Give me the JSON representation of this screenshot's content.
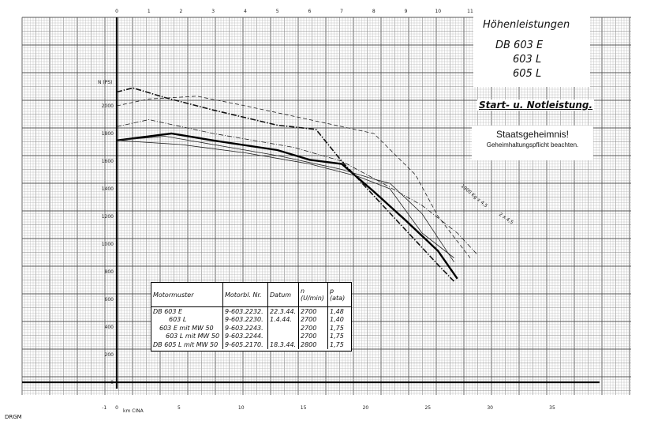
{
  "title": {
    "line1": "Höhenleistungen",
    "line2": "DB 603 E",
    "line3": "603 L",
    "line4": "605 L"
  },
  "start_label": "Start- u. Notleistung.",
  "secret": {
    "headline": "Staatsgeheimnis!",
    "note": "Geheimhaltungspflicht beachten."
  },
  "footer": "DRGM",
  "legend": {
    "headers": [
      "Motormuster",
      "Motorbl. Nr.",
      "Datum",
      "n (U/min)",
      "p (ata)"
    ],
    "rows": [
      [
        "DB 603 E",
        "9-603.2232.",
        "22.3.44.",
        "2700",
        "1,48"
      ],
      [
        "603 L",
        "9-603.2230.",
        "1.4.44.",
        "2700",
        "1,40"
      ],
      [
        "603 E mit MW 50",
        "9-603.2243.",
        "",
        "2700",
        "1,75"
      ],
      [
        "603 L mit MW 50",
        "9-603.2244.",
        "",
        "2700",
        "1,75"
      ],
      [
        "DB 605 L mit MW 50",
        "9-605.2170.",
        "18.3.44.",
        "2800",
        "1,75"
      ]
    ]
  },
  "chart_data": {
    "type": "line",
    "ylabel": "N (PS)",
    "y_ticks": [
      "2000",
      "1800",
      "1600",
      "1400",
      "1200",
      "1000",
      "800",
      "600",
      "400",
      "200",
      "0"
    ],
    "ylim": [
      0,
      2200
    ],
    "x_top_ticks": [
      "0",
      "1",
      "2",
      "3",
      "4",
      "5",
      "6",
      "7",
      "8",
      "9",
      "10",
      "11"
    ],
    "x_bottom_label": "km CINA",
    "x_bottom_ticks": [
      "-1",
      "0",
      "5",
      "10",
      "15",
      "20",
      "25",
      "30",
      "35"
    ],
    "xlim": [
      -1,
      11.5
    ],
    "series_annotations": [
      "1900 Kg x 4,5",
      "2 x 4,5"
    ],
    "series": [
      {
        "style": "dash-dot",
        "x": [
          0.0,
          0.5,
          1.5,
          3.0,
          5.0,
          6.2,
          7.0,
          8.0,
          9.0,
          10.0,
          10.5
        ],
        "y": [
          2100,
          2130,
          2060,
          1970,
          1860,
          1830,
          1600,
          1350,
          1100,
          850,
          730
        ]
      },
      {
        "style": "thin-dash",
        "x": [
          0.0,
          1.0,
          2.5,
          4.0,
          6.0,
          8.0,
          9.3,
          10.0,
          11.0
        ],
        "y": [
          2000,
          2050,
          2070,
          2000,
          1900,
          1800,
          1500,
          1200,
          900
        ]
      },
      {
        "style": "dash-dot-light",
        "x": [
          0.0,
          1.0,
          3.0,
          5.5,
          7.0,
          8.2,
          9.5,
          10.6,
          11.2
        ],
        "y": [
          1850,
          1900,
          1800,
          1700,
          1600,
          1450,
          1280,
          1080,
          930
        ]
      },
      {
        "style": "solid-heavy",
        "x": [
          0.0,
          1.7,
          3.0,
          5.0,
          6.0,
          7.0,
          8.0,
          9.0,
          10.0,
          10.6
        ],
        "y": [
          1750,
          1800,
          1750,
          1680,
          1610,
          1580,
          1380,
          1170,
          950,
          750
        ]
      },
      {
        "style": "solid-thin",
        "x": [
          0.0,
          1.5,
          3.0,
          5.0,
          7.0,
          8.0,
          8.5,
          9.5,
          10.5
        ],
        "y": [
          1750,
          1780,
          1720,
          1640,
          1540,
          1470,
          1440,
          1220,
          870
        ]
      },
      {
        "style": "solid-thin",
        "x": [
          0.0,
          2.0,
          4.0,
          6.0,
          7.5,
          8.5,
          9.5,
          10.5
        ],
        "y": [
          1750,
          1720,
          1660,
          1580,
          1490,
          1400,
          1080,
          900
        ]
      }
    ]
  }
}
